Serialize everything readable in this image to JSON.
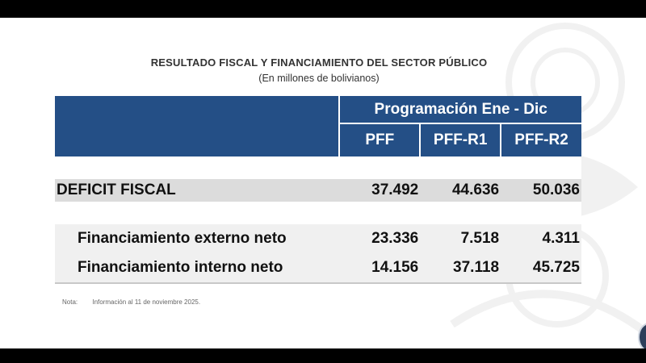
{
  "title": "RESULTADO FISCAL Y FINANCIAMIENTO  DEL SECTOR PÚBLICO",
  "subtitle": "(En millones de bolivianos)",
  "table": {
    "group_header": "Programación Ene - Dic",
    "columns": [
      "PFF",
      "PFF-R1",
      "PFF-R2"
    ],
    "rows": [
      {
        "label": "DEFICIT FISCAL",
        "values": [
          "37.492",
          "44.636",
          "50.036"
        ]
      },
      {
        "label": "Financiamiento externo neto",
        "values": [
          "23.336",
          "7.518",
          "4.311"
        ]
      },
      {
        "label": "Financiamiento interno neto",
        "values": [
          "14.156",
          "37.118",
          "45.725"
        ]
      }
    ]
  },
  "note": {
    "label": "Nota:",
    "text": "Información al 11 de noviembre 2025."
  },
  "colors": {
    "header_bg": "#244f86",
    "deficit_row_bg": "#dcdcdc",
    "financing_rows_bg": "#f0f0f0"
  }
}
